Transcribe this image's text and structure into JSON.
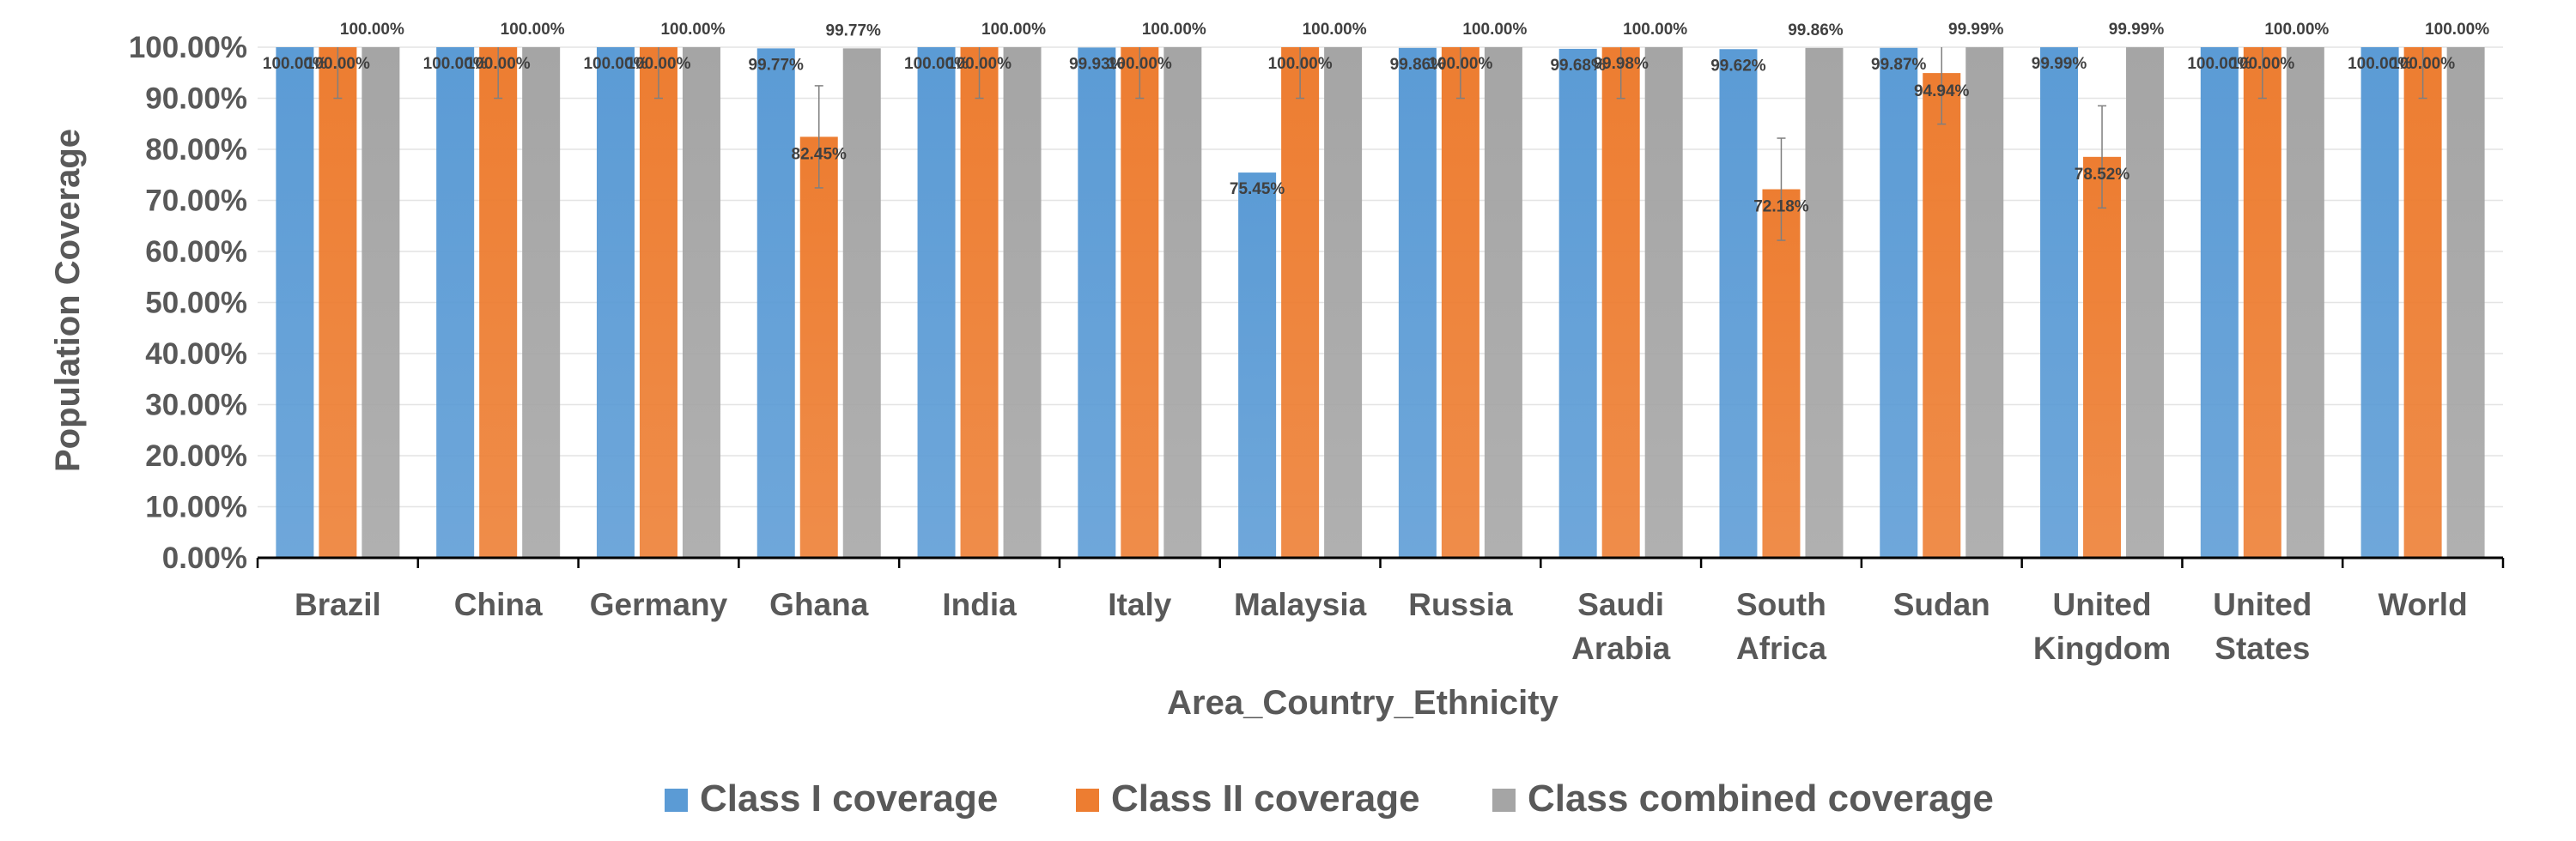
{
  "chart_data": {
    "type": "bar",
    "ylabel": "Population Coverage",
    "xlabel": "Area_Country_Ethnicity",
    "ylim": [
      0,
      100
    ],
    "yticks": [
      "0.00%",
      "10.00%",
      "20.00%",
      "30.00%",
      "40.00%",
      "50.00%",
      "60.00%",
      "70.00%",
      "80.00%",
      "90.00%",
      "100.00%"
    ],
    "categories": [
      "Brazil",
      "China",
      "Germany",
      "Ghana",
      "India",
      "Italy",
      "Malaysia",
      "Russia",
      "Saudi Arabia",
      "South Africa",
      "Sudan",
      "United Kingdom",
      "United States",
      "World"
    ],
    "category_lines": [
      [
        "Brazil"
      ],
      [
        "China"
      ],
      [
        "Germany"
      ],
      [
        "Ghana"
      ],
      [
        "India"
      ],
      [
        "Italy"
      ],
      [
        "Malaysia"
      ],
      [
        "Russia"
      ],
      [
        "Saudi",
        "Arabia"
      ],
      [
        "South",
        "Africa"
      ],
      [
        "Sudan"
      ],
      [
        "United",
        "Kingdom"
      ],
      [
        "United",
        "States"
      ],
      [
        "World"
      ]
    ],
    "series": [
      {
        "name": "Class I coverage",
        "color": "#5B9BD5",
        "values": [
          100.0,
          100.0,
          100.0,
          99.77,
          100.0,
          99.93,
          75.45,
          99.86,
          99.68,
          99.62,
          99.87,
          99.99,
          100.0,
          100.0
        ],
        "labels": [
          "100.00%",
          "100.00%",
          "100.00%",
          "99.77%",
          "100.00%",
          "99.93%",
          "75.45%",
          "99.86%",
          "99.68%",
          "99.62%",
          "99.87%",
          "99.99%",
          "100.00%",
          "100.00%"
        ]
      },
      {
        "name": "Class II coverage",
        "color": "#ED7D31",
        "values": [
          100.0,
          100.0,
          100.0,
          82.45,
          100.0,
          100.0,
          100.0,
          100.0,
          99.98,
          72.18,
          94.94,
          78.52,
          100.0,
          100.0
        ],
        "labels": [
          "100.00%",
          "100.00%",
          "100.00%",
          "82.45%",
          "100.00%",
          "100.00%",
          "100.00%",
          "100.00%",
          "99.98%",
          "72.18%",
          "94.94%",
          "78.52%",
          "100.00%",
          "100.00%"
        ]
      },
      {
        "name": "Class combined coverage",
        "color": "#A5A5A5",
        "values": [
          100.0,
          100.0,
          100.0,
          99.77,
          100.0,
          100.0,
          100.0,
          100.0,
          100.0,
          99.86,
          99.99,
          99.99,
          100.0,
          100.0
        ],
        "labels": [
          "100.00%",
          "100.00%",
          "100.00%",
          "99.77%",
          "100.00%",
          "100.00%",
          "100.00%",
          "100.00%",
          "100.00%",
          "99.86%",
          "99.99%",
          "99.99%",
          "100.00%",
          "100.00%"
        ]
      }
    ],
    "error_bars": {
      "series": "Class II coverage",
      "magnitude": 10
    },
    "grid": true,
    "legend": "bottom"
  }
}
